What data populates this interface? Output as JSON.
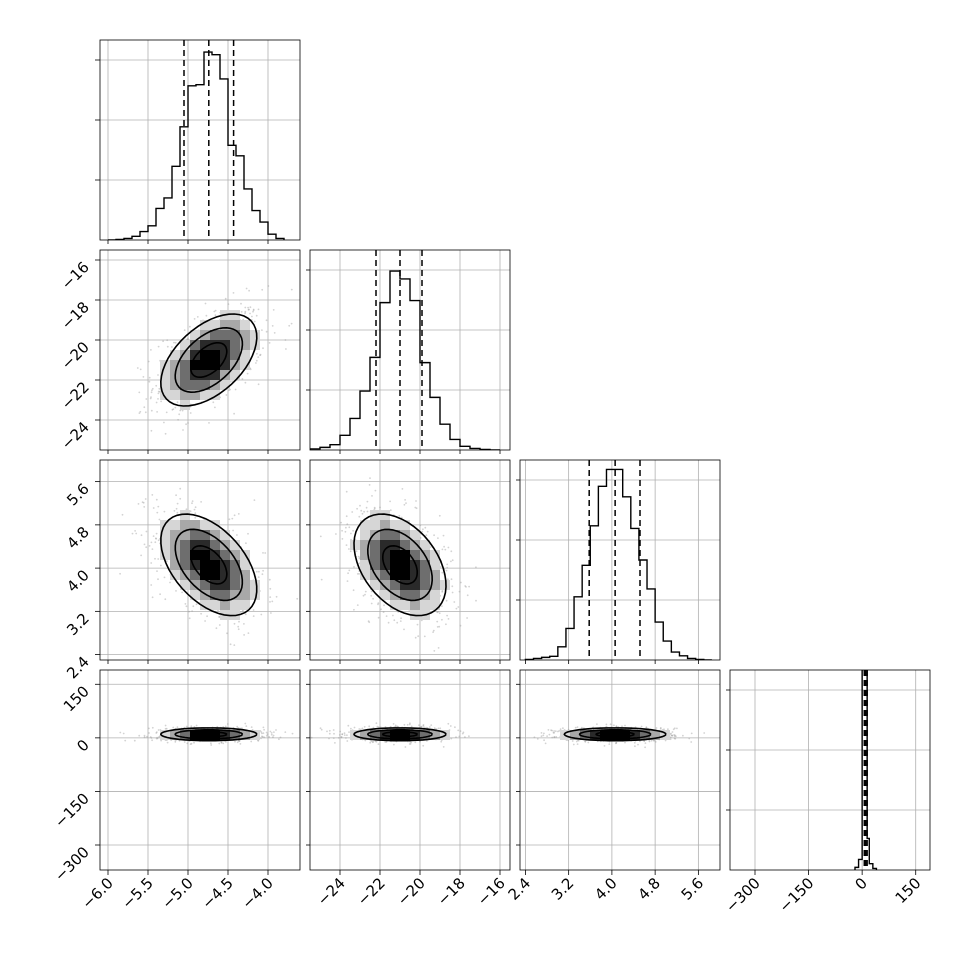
{
  "chart_data": {
    "type": "corner",
    "params": [
      {
        "range": [
          -6.1,
          -3.6
        ],
        "ticks": [
          "-6.0",
          "-5.5",
          "-5.0",
          "-4.5",
          "-4.0"
        ],
        "tick_values": [
          -6.0,
          -5.5,
          -5.0,
          -4.5,
          -4.0
        ],
        "quantiles": [
          -5.05,
          -4.74,
          -4.43
        ],
        "mean": -4.74,
        "sd": 0.3
      },
      {
        "range": [
          -25.5,
          -15.5
        ],
        "ticks": [
          "-24",
          "-22",
          "-20",
          "-18",
          "-16"
        ],
        "tick_values": [
          -24,
          -22,
          -20,
          -18,
          -16
        ],
        "quantiles": [
          -22.2,
          -21.0,
          -19.9
        ],
        "mean": -21.0,
        "sd": 1.15
      },
      {
        "range": [
          2.3,
          6.0
        ],
        "ticks": [
          "2.4",
          "3.2",
          "4.0",
          "4.8",
          "5.6"
        ],
        "tick_values": [
          2.4,
          3.2,
          4.0,
          4.8,
          5.6
        ],
        "quantiles": [
          3.58,
          4.06,
          4.52
        ],
        "mean": 4.06,
        "sd": 0.47
      },
      {
        "range": [
          -370,
          190
        ],
        "ticks": [
          "-300",
          "-150",
          "0",
          "150"
        ],
        "tick_values": [
          -300,
          -150,
          0,
          150
        ],
        "quantiles": [
          6,
          10,
          14
        ],
        "mean": 10,
        "sd": 9
      }
    ],
    "histograms": [
      {
        "param": 0,
        "bin_edges": [
          -6.0,
          -5.9,
          -5.8,
          -5.7,
          -5.6,
          -5.5,
          -5.4,
          -5.3,
          -5.2,
          -5.1,
          -5.0,
          -4.9,
          -4.8,
          -4.7,
          -4.6,
          -4.5,
          -4.4,
          -4.3,
          -4.2,
          -4.1,
          -4.0,
          -3.9,
          -3.8
        ],
        "counts": [
          0,
          1,
          3,
          7,
          16,
          27,
          60,
          80,
          140,
          215,
          293,
          295,
          357,
          352,
          306,
          180,
          160,
          97,
          56,
          34,
          11,
          3
        ]
      },
      {
        "param": 1,
        "bin_edges": [
          -25.5,
          -25.0,
          -24.5,
          -24.0,
          -23.5,
          -23.0,
          -22.5,
          -22.0,
          -21.5,
          -21.0,
          -20.5,
          -20.0,
          -19.5,
          -19.0,
          -18.5,
          -18.0,
          -17.5,
          -17.0,
          -16.5,
          -16.0
        ],
        "counts": [
          2,
          5,
          10,
          28,
          60,
          112,
          176,
          280,
          340,
          325,
          284,
          166,
          100,
          49,
          20,
          7,
          3,
          1,
          0
        ]
      },
      {
        "param": 2,
        "bin_edges": [
          2.4,
          2.55,
          2.7,
          2.85,
          3.0,
          3.15,
          3.3,
          3.45,
          3.6,
          3.75,
          3.9,
          4.05,
          4.2,
          4.35,
          4.5,
          4.65,
          4.8,
          4.95,
          5.1,
          5.25,
          5.4,
          5.55,
          5.7,
          5.85
        ],
        "counts": [
          1,
          3,
          5,
          7,
          25,
          60,
          120,
          180,
          255,
          330,
          362,
          362,
          310,
          250,
          190,
          135,
          72,
          36,
          15,
          8,
          3,
          1,
          0
        ]
      },
      {
        "param": 3,
        "bin_edges": [
          -20,
          -10,
          0,
          6,
          10,
          14,
          20,
          30,
          40
        ],
        "counts": [
          5,
          20,
          400,
          420,
          415,
          60,
          12,
          3
        ]
      }
    ],
    "correlations": [
      [
        1,
        0.5,
        -0.48,
        0
      ],
      [
        0.5,
        1,
        -0.4,
        0
      ],
      [
        -0.48,
        -0.4,
        1,
        0
      ],
      [
        0,
        0,
        0,
        1
      ]
    ],
    "quantile_line_style": "dashed",
    "grid": true,
    "scatter_color": "#9e9e9e",
    "contour_color": "#000000",
    "density_colors": [
      "#ffffff",
      "#d6d6d6",
      "#a8a8a8",
      "#6e6e6e",
      "#2a2a2a",
      "#000000"
    ]
  }
}
